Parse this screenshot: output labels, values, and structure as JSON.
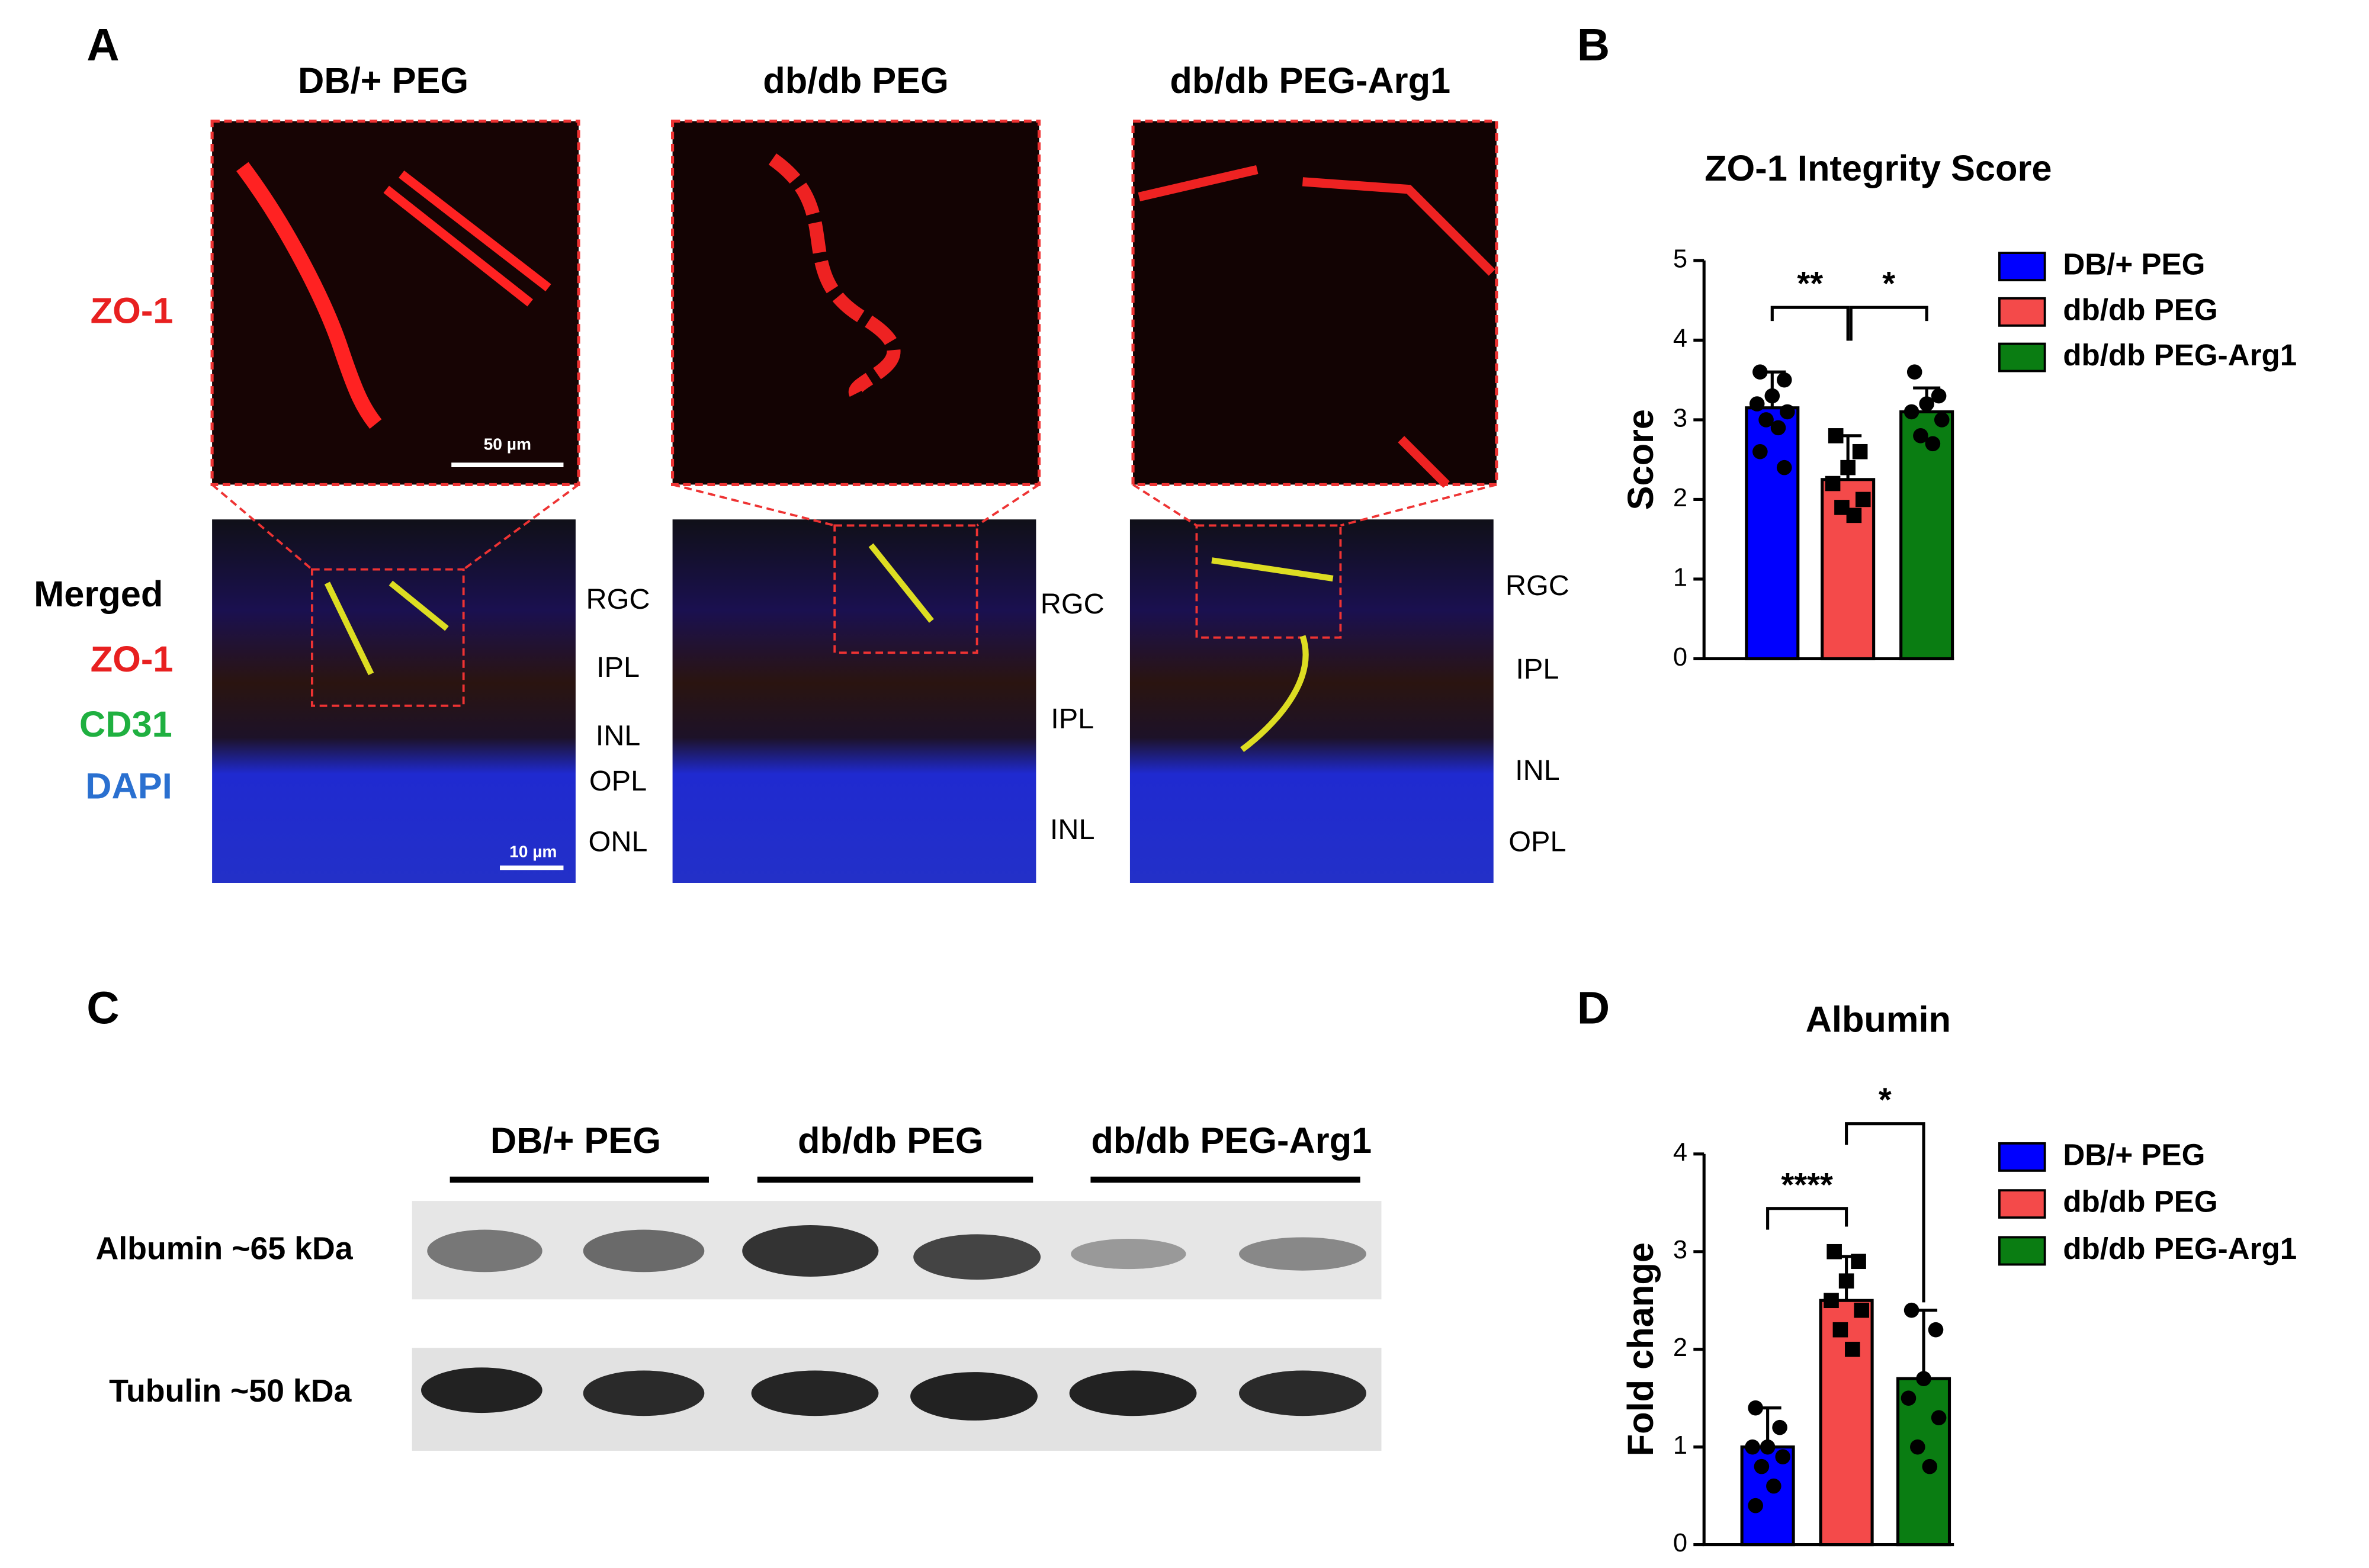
{
  "panel_labels": [
    "A",
    "B",
    "C",
    "D"
  ],
  "panel_a": {
    "conditions": [
      "DB/+ PEG",
      "db/db PEG",
      "db/db PEG-Arg1"
    ],
    "stain_label": "ZO-1",
    "merged_labels": [
      "Merged",
      "ZO-1",
      "CD31",
      "DAPI"
    ],
    "scale_bars": [
      "50 µm",
      "10 µm"
    ],
    "layers": [
      [
        "RGC",
        "IPL",
        "INL",
        "OPL",
        "ONL"
      ],
      [
        "RGC",
        "IPL",
        "INL"
      ],
      [
        "RGC",
        "IPL",
        "INL",
        "OPL"
      ]
    ]
  },
  "panel_c": {
    "groups": [
      "DB/+ PEG",
      "db/db PEG",
      "db/db PEG-Arg1"
    ],
    "rows": [
      "Albumin ~65 kDa",
      "Tubulin ~50 kDa"
    ]
  },
  "chart_data": [
    {
      "type": "bar",
      "title": "ZO-1 Integrity Score",
      "y_label": "Score",
      "ylim": [
        0,
        5
      ],
      "yticks": [
        0,
        1,
        2,
        3,
        4,
        5
      ],
      "annotations": [
        "**",
        "*"
      ],
      "series": [
        {
          "name": "DB/+ PEG",
          "color": "#0000ff",
          "values": [
            3.15
          ],
          "errors": [
            0.45
          ],
          "points": [
            3.6,
            3.5,
            3.3,
            3.2,
            3.1,
            3.0,
            2.9,
            2.6,
            2.4
          ]
        },
        {
          "name": "db/db PEG",
          "color": "#f44a4a",
          "values": [
            2.25
          ],
          "errors": [
            0.55
          ],
          "points": [
            2.8,
            2.6,
            2.4,
            2.2,
            2.0,
            1.9,
            1.8
          ]
        },
        {
          "name": "db/db PEG-Arg1",
          "color": "#0a7d12",
          "values": [
            3.1
          ],
          "errors": [
            0.3
          ],
          "points": [
            3.6,
            3.3,
            3.2,
            3.1,
            3.0,
            2.8,
            2.7
          ]
        }
      ]
    },
    {
      "type": "bar",
      "title": "Albumin",
      "y_label": "Fold change",
      "ylim": [
        0,
        4
      ],
      "yticks": [
        0,
        1,
        2,
        3,
        4
      ],
      "annotations": [
        "****",
        "*"
      ],
      "series": [
        {
          "name": "DB/+ PEG",
          "color": "#0000ff",
          "values": [
            1.0
          ],
          "errors": [
            0.4
          ],
          "points": [
            1.4,
            1.2,
            1.0,
            1.0,
            0.9,
            0.8,
            0.6,
            0.4
          ]
        },
        {
          "name": "db/db PEG",
          "color": "#f44a4a",
          "values": [
            2.5
          ],
          "errors": [
            0.45
          ],
          "points": [
            3.0,
            2.9,
            2.7,
            2.5,
            2.4,
            2.2,
            2.0
          ]
        },
        {
          "name": "db/db PEG-Arg1",
          "color": "#0a7d12",
          "values": [
            1.7
          ],
          "errors": [
            0.7
          ],
          "points": [
            2.4,
            2.2,
            1.7,
            1.5,
            1.3,
            1.0,
            0.8
          ]
        }
      ]
    }
  ]
}
